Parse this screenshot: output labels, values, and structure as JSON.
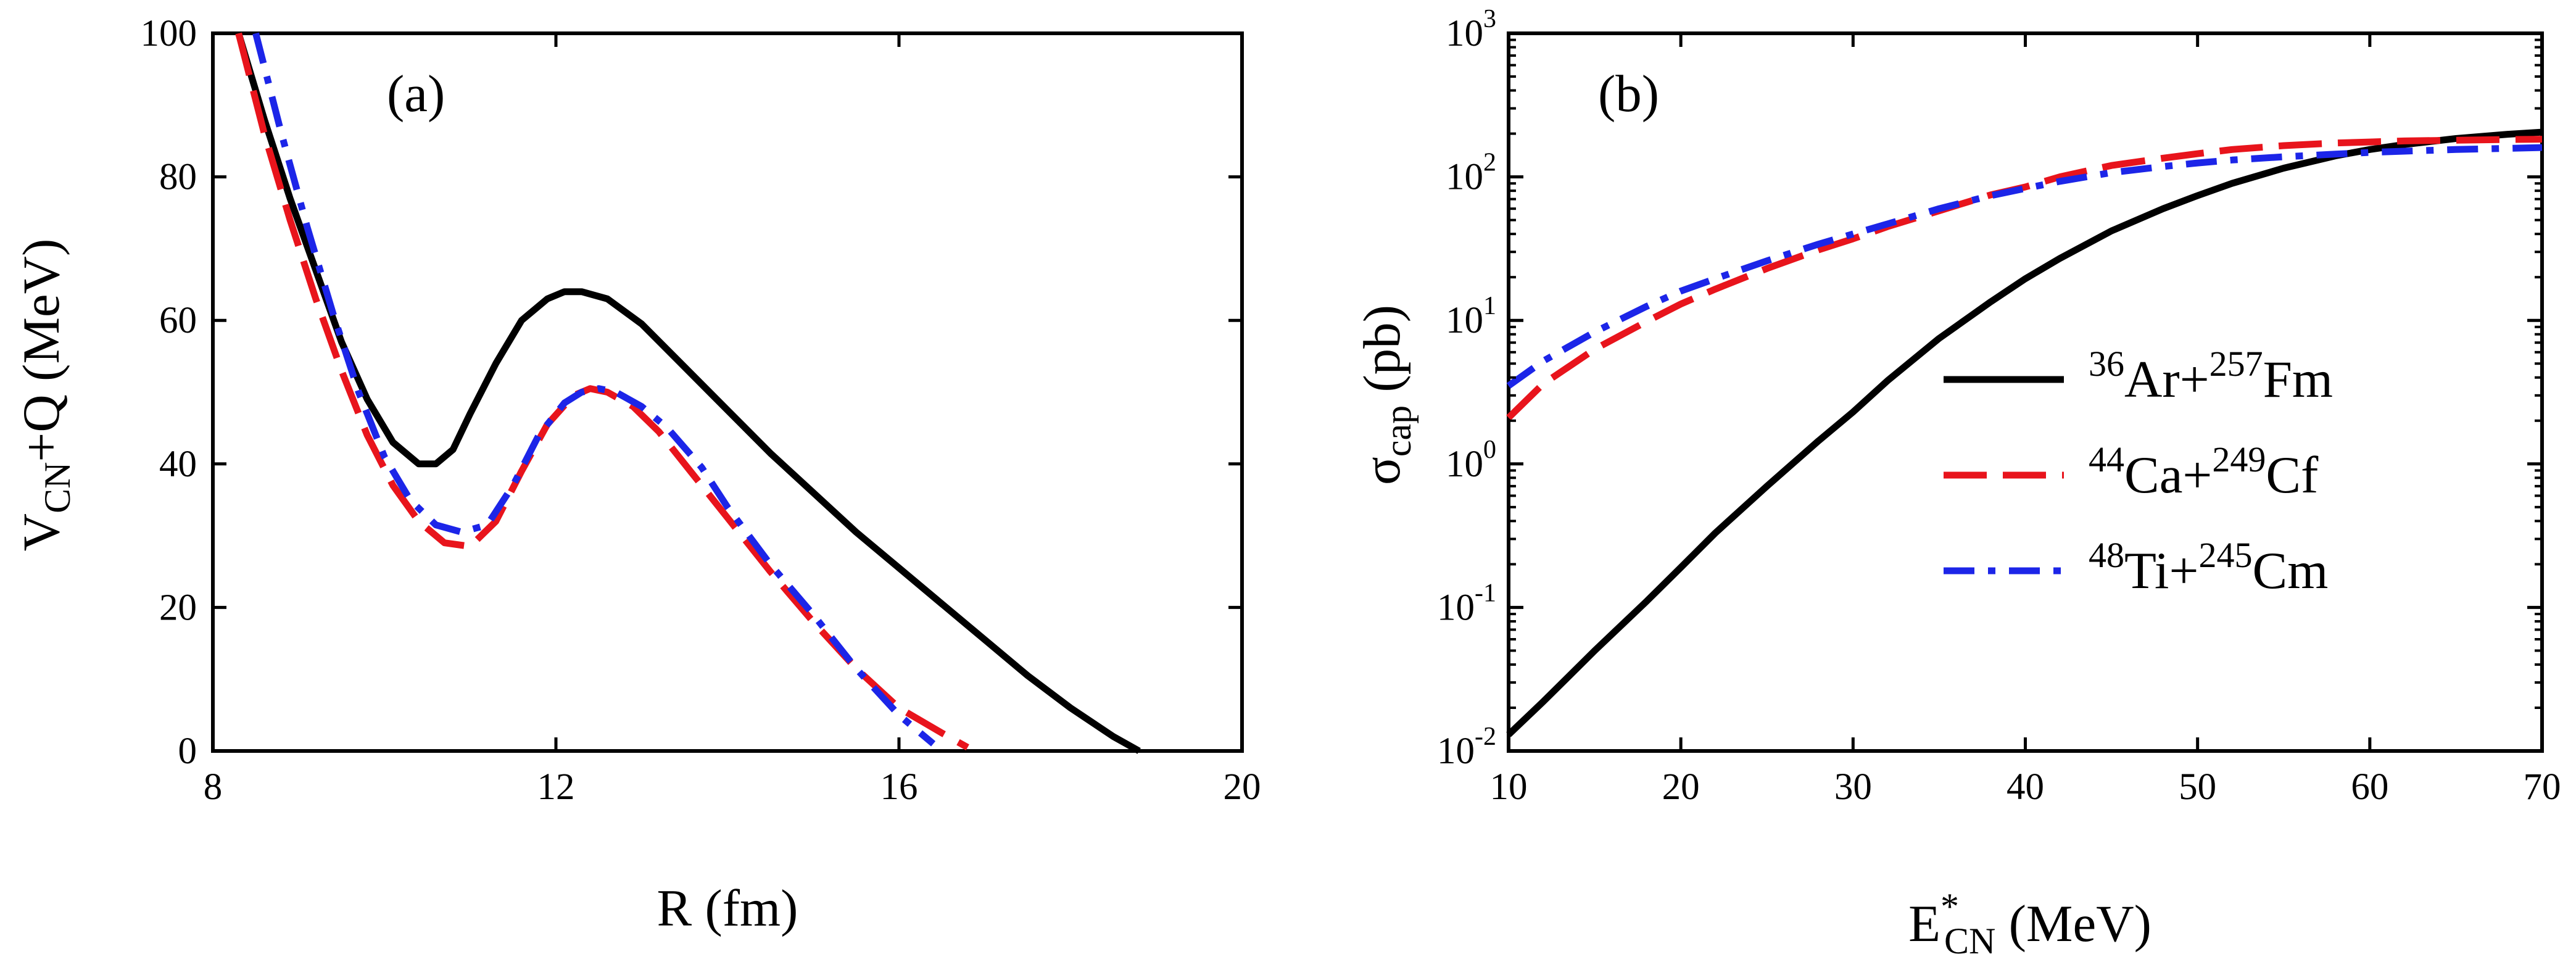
{
  "chart_data": [
    {
      "panel_label": "(a)",
      "type": "line",
      "xlabel": "R (fm)",
      "ylabel": {
        "main": "V",
        "sub": "CN",
        "rest": "+Q (MeV)"
      },
      "xlim": [
        8,
        20
      ],
      "ylim": [
        0,
        100
      ],
      "xticks": [
        8,
        12,
        16,
        20
      ],
      "yticks": [
        0,
        20,
        40,
        60,
        80,
        100
      ],
      "series": [
        {
          "key": "ar_fm",
          "color": "#000000",
          "dash": "solid",
          "x": [
            8.3,
            8.6,
            8.9,
            9.2,
            9.5,
            9.8,
            10.1,
            10.4,
            10.6,
            10.8,
            11.0,
            11.3,
            11.6,
            11.9,
            12.1,
            12.3,
            12.6,
            13.0,
            13.5,
            14.0,
            14.5,
            15.0,
            15.5,
            16.0,
            16.5,
            17.0,
            17.5,
            18.0,
            18.5,
            18.8
          ],
          "y": [
            100,
            88,
            77,
            67,
            57,
            49,
            43,
            40,
            40,
            42,
            47,
            54,
            60,
            63,
            64,
            64,
            63,
            59.5,
            53.5,
            47.5,
            41.5,
            36,
            30.5,
            25.5,
            20.5,
            15.5,
            10.5,
            6,
            2,
            0
          ]
        },
        {
          "key": "ca_cf",
          "color": "#e8141c",
          "dash": "long-dash",
          "x": [
            8.3,
            8.6,
            8.9,
            9.2,
            9.5,
            9.8,
            10.1,
            10.4,
            10.7,
            11.0,
            11.3,
            11.6,
            11.9,
            12.2,
            12.4,
            12.6,
            12.9,
            13.2,
            13.6,
            14.0,
            14.5,
            15.0,
            15.5,
            16.0,
            16.5,
            16.8
          ],
          "y": [
            100,
            86,
            74,
            63,
            53,
            44,
            37,
            32,
            29,
            28.5,
            32,
            39,
            45.5,
            49.5,
            50.5,
            50,
            48,
            44.5,
            38.5,
            32.5,
            25,
            18,
            11.5,
            6,
            2.5,
            0.5
          ]
        },
        {
          "key": "ti_cm",
          "color": "#1c25e8",
          "dash": "dash-dot",
          "x": [
            8.5,
            8.8,
            9.1,
            9.4,
            9.7,
            10.0,
            10.3,
            10.6,
            10.9,
            11.2,
            11.5,
            11.8,
            12.1,
            12.3,
            12.5,
            12.7,
            13.0,
            13.3,
            13.7,
            14.0,
            14.5,
            15.0,
            15.5,
            16.0,
            16.4
          ],
          "y": [
            100,
            86,
            73,
            61,
            50,
            41,
            35,
            31.5,
            30.5,
            31.5,
            37,
            44,
            48.5,
            50,
            50.5,
            50,
            48,
            45,
            39.5,
            34,
            26,
            19,
            11.5,
            5,
            1
          ]
        }
      ]
    },
    {
      "panel_label": "(b)",
      "type": "line",
      "xlabel": {
        "main": "E",
        "sup": "*",
        "sub": "CN",
        "rest": " (MeV)"
      },
      "ylabel": {
        "main": "σ",
        "sub": "cap",
        "rest": " (pb)"
      },
      "xlim": [
        10,
        70
      ],
      "ylim": [
        0.01,
        1000
      ],
      "yscale": "log",
      "xticks": [
        10,
        20,
        30,
        40,
        50,
        60,
        70
      ],
      "yticks": [
        {
          "base": "10",
          "exp": "-2",
          "value": 0.01
        },
        {
          "base": "10",
          "exp": "-1",
          "value": 0.1
        },
        {
          "base": "10",
          "exp": "0",
          "value": 1
        },
        {
          "base": "10",
          "exp": "1",
          "value": 10
        },
        {
          "base": "10",
          "exp": "2",
          "value": 100
        },
        {
          "base": "10",
          "exp": "3",
          "value": 1000
        }
      ],
      "legend_position": "center-right",
      "series": [
        {
          "key": "ar_fm",
          "legend": {
            "sup1": "36",
            "el1": "Ar+",
            "sup2": "257",
            "el2": "Fm"
          },
          "color": "#000000",
          "dash": "solid",
          "x": [
            10,
            12,
            15,
            18,
            20,
            22,
            25,
            28,
            30,
            32,
            35,
            38,
            40,
            42,
            45,
            48,
            50,
            52,
            55,
            58,
            60,
            62,
            65,
            68,
            70
          ],
          "y": [
            0.013,
            0.022,
            0.05,
            0.11,
            0.19,
            0.33,
            0.7,
            1.45,
            2.3,
            3.8,
            7.5,
            13.5,
            19.5,
            27,
            42,
            60,
            74,
            90,
            115,
            140,
            155,
            168,
            185,
            198,
            205
          ]
        },
        {
          "key": "ca_cf",
          "legend": {
            "sup1": "44",
            "el1": "Ca+",
            "sup2": "249",
            "el2": "Cf"
          },
          "color": "#e8141c",
          "dash": "long-dash",
          "x": [
            10,
            12,
            15,
            18,
            20,
            22,
            25,
            28,
            30,
            32,
            35,
            38,
            40,
            42,
            45,
            48,
            50,
            52,
            55,
            58,
            60,
            62,
            65,
            68,
            70
          ],
          "y": [
            2.1,
            3.6,
            6.3,
            9.8,
            13,
            16.5,
            23,
            31,
            37,
            45,
            58,
            75,
            85,
            100,
            120,
            135,
            145,
            155,
            165,
            172,
            175,
            178,
            180,
            182,
            183
          ]
        },
        {
          "key": "ti_cm",
          "legend": {
            "sup1": "48",
            "el1": "Ti+",
            "sup2": "245",
            "el2": "Cm"
          },
          "color": "#1c25e8",
          "dash": "dash-dot",
          "x": [
            10,
            12,
            15,
            18,
            20,
            22,
            25,
            28,
            30,
            32,
            35,
            38,
            40,
            42,
            45,
            48,
            50,
            52,
            55,
            58,
            60,
            62,
            65,
            68,
            70
          ],
          "y": [
            3.5,
            5.2,
            8.3,
            12.5,
            16,
            19.5,
            26,
            34,
            40,
            47,
            60,
            74,
            83,
            93,
            107,
            118,
            125,
            131,
            138,
            144,
            148,
            151,
            155,
            158,
            160
          ]
        }
      ]
    }
  ]
}
